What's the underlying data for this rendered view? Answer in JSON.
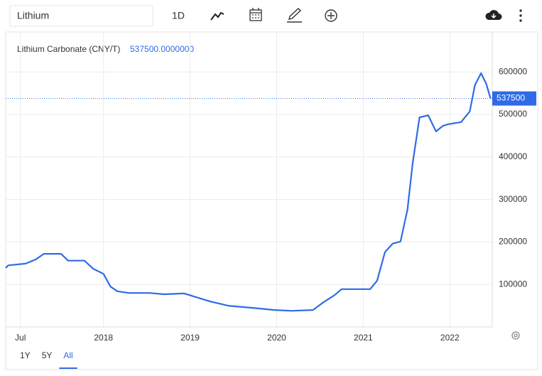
{
  "ui": {
    "search_value": "Lithium",
    "interval": "1D",
    "ranges": [
      "1Y",
      "5Y",
      "All"
    ],
    "active_range": 2
  },
  "chart_data": {
    "type": "line",
    "x": [
      2016.87,
      2016.9,
      2017.1,
      2017.22,
      2017.31,
      2017.51,
      2017.59,
      2017.78,
      2017.88,
      2018.0,
      2018.08,
      2018.16,
      2018.29,
      2018.53,
      2018.7,
      2018.93,
      2019.07,
      2019.23,
      2019.44,
      2019.72,
      2019.97,
      2020.17,
      2020.42,
      2020.54,
      2020.67,
      2020.75,
      2021.08,
      2021.16,
      2021.25,
      2021.34,
      2021.43,
      2021.51,
      2021.57,
      2021.65,
      2021.75,
      2021.84,
      2021.92,
      2021.98,
      2022.13,
      2022.23,
      2022.29,
      2022.36,
      2022.42,
      2022.47
    ],
    "series": [
      {
        "name": "Lithium Carbonate (CNY/T)",
        "color": "#2f6be6",
        "values": [
          139000,
          145000,
          149000,
          159000,
          172000,
          172000,
          156000,
          156000,
          137000,
          125000,
          95000,
          84000,
          80000,
          80000,
          77000,
          79000,
          70000,
          60000,
          50000,
          45000,
          40000,
          38000,
          40000,
          58000,
          75000,
          89000,
          89000,
          109000,
          176000,
          196000,
          201000,
          276000,
          385000,
          493000,
          498000,
          460000,
          473000,
          477000,
          482000,
          507000,
          569000,
          597000,
          572000,
          537500
        ]
      }
    ],
    "last_value": 537500,
    "last_value_label": "537500.0000000",
    "xlim": [
      2016.87,
      2022.49
    ],
    "xticks": [
      {
        "value": 2017.04,
        "label": "Jul"
      },
      2018,
      2019,
      2020,
      2021,
      2022
    ],
    "ylim": [
      0,
      700000
    ],
    "yticks": [
      100000,
      200000,
      300000,
      400000,
      500000,
      600000
    ],
    "grid": true
  }
}
